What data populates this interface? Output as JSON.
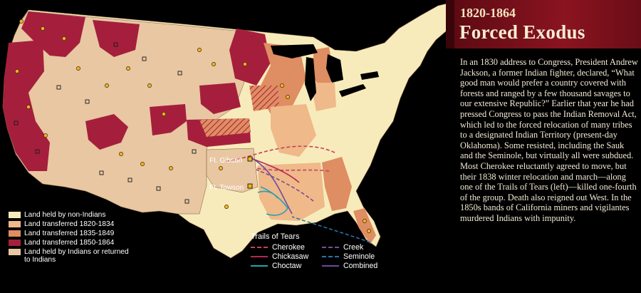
{
  "header": {
    "years": "1820-1864",
    "title": "Forced Exodus"
  },
  "body_text": "In an 1830 address to Congress, President Andrew Jackson, a former Indian fighter, declared, “What good man would prefer a country covered with forests and ranged by a few thousand savages to our extensive Republic?” Earlier that year he had pressed Congress to pass the Indian Removal Act, which led to the forced relocation of many tribes to a designated Indian Territory (present-day Oklahoma). Some resisted, including the Sauk and the Seminole, but virtually all were subdued. Most Cherokee reluctantly agreed to move, but their 1838 winter relocation and march—along one of the Trails of Tears (left)—killed one-fourth of the group. Death also reigned out West. In the 1850s bands of California miners and vigilantes murdered Indians with impunity.",
  "map_labels": {
    "ft_gibson": "Ft. Gibson",
    "ft_towson": "Ft. Towson"
  },
  "legend": [
    {
      "label": "Land held by non-Indians",
      "color": "#f8ebbb"
    },
    {
      "label": "Land transferred 1820-1834",
      "color": "#efb98a"
    },
    {
      "label": "Land transferred 1835-1849",
      "color": "#df8d62"
    },
    {
      "label": "Land transferred 1850-1864",
      "color": "#a51f3c"
    },
    {
      "label": "Land held by Indians or returned to Indians",
      "color": "#e8c7a2"
    }
  ],
  "trails": {
    "title": "Trails of Tears",
    "items": [
      {
        "label": "Cherokee",
        "color": "#c8425a",
        "style": "dashed"
      },
      {
        "label": "Creek",
        "color": "#7a4f8f",
        "style": "dashed"
      },
      {
        "label": "Chickasaw",
        "color": "#b32a56",
        "style": "solid"
      },
      {
        "label": "Seminole",
        "color": "#2a73a8",
        "style": "dashed"
      },
      {
        "label": "Choctaw",
        "color": "#2aa0b0",
        "style": "solid"
      },
      {
        "label": "Combined",
        "color": "#6c4aa3",
        "style": "solid"
      }
    ]
  },
  "colors": {
    "header_band": "#8a1420",
    "background": "#000000",
    "sites_marker": "#f3b31c"
  }
}
